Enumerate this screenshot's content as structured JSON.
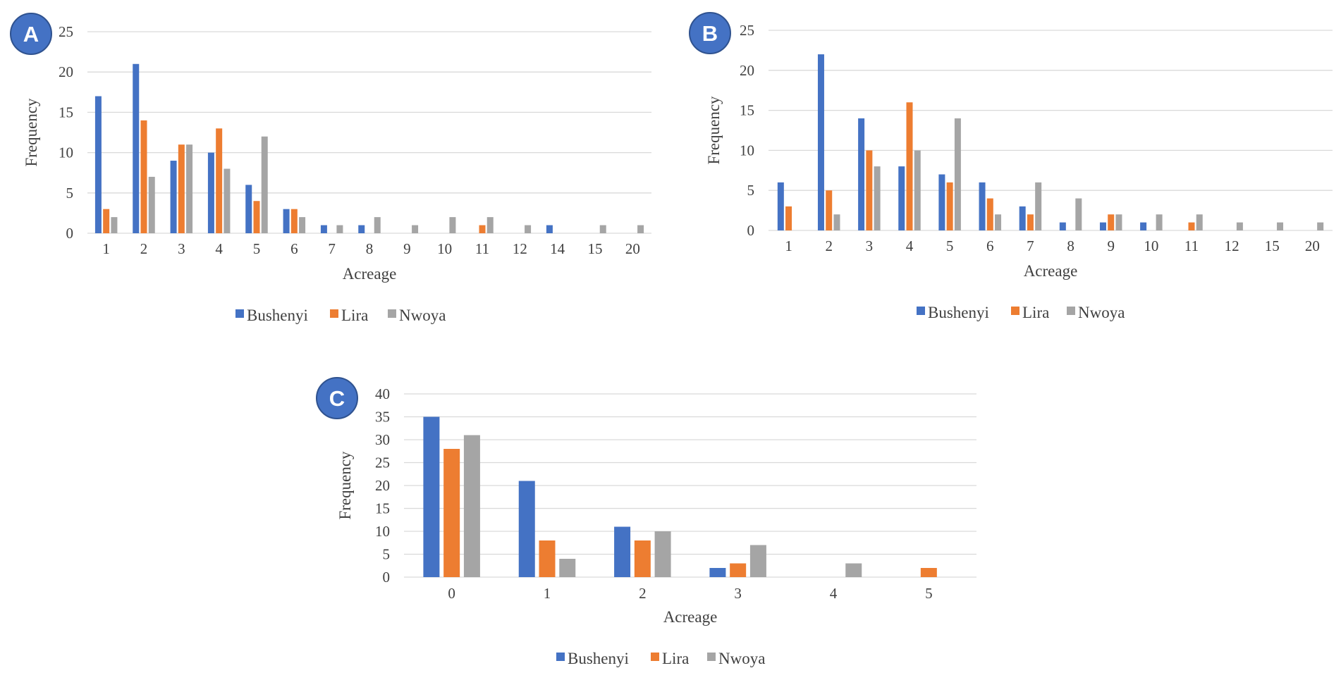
{
  "colors": {
    "Bushenyi": "#4472c4",
    "Lira": "#ed7d31",
    "Nwoya": "#a5a5a5",
    "grid": "#d9d9d9",
    "badge": "#4472c4",
    "badge_border": "#2f528f"
  },
  "chart_data": [
    {
      "panel": "A",
      "type": "bar",
      "title": "",
      "xlabel": "Acreage",
      "ylabel": "Frequency",
      "ylim": [
        0,
        25
      ],
      "yticks": [
        0,
        5,
        10,
        15,
        20,
        25
      ],
      "categories": [
        "1",
        "2",
        "3",
        "4",
        "5",
        "6",
        "7",
        "8",
        "9",
        "10",
        "11",
        "12",
        "14",
        "15",
        "20"
      ],
      "series": [
        {
          "name": "Bushenyi",
          "values": [
            17,
            21,
            9,
            10,
            6,
            3,
            1,
            1,
            0,
            0,
            0,
            0,
            1,
            0,
            0
          ]
        },
        {
          "name": "Lira",
          "values": [
            3,
            14,
            11,
            13,
            4,
            3,
            0,
            0,
            0,
            0,
            1,
            0,
            0,
            0,
            0
          ]
        },
        {
          "name": "Nwoya",
          "values": [
            2,
            7,
            11,
            8,
            12,
            2,
            1,
            2,
            1,
            2,
            2,
            1,
            0,
            1,
            1
          ]
        }
      ],
      "legend": [
        "Bushenyi",
        "Lira",
        "Nwoya"
      ]
    },
    {
      "panel": "B",
      "type": "bar",
      "title": "",
      "xlabel": "Acreage",
      "ylabel": "Frequency",
      "ylim": [
        0,
        25
      ],
      "yticks": [
        0,
        5,
        10,
        15,
        20,
        25
      ],
      "categories": [
        "1",
        "2",
        "3",
        "4",
        "5",
        "6",
        "7",
        "8",
        "9",
        "10",
        "11",
        "12",
        "15",
        "20"
      ],
      "series": [
        {
          "name": "Bushenyi",
          "values": [
            6,
            22,
            14,
            8,
            7,
            6,
            3,
            1,
            1,
            1,
            0,
            0,
            0,
            0
          ]
        },
        {
          "name": "Lira",
          "values": [
            3,
            5,
            10,
            16,
            6,
            4,
            2,
            0,
            2,
            0,
            1,
            0,
            0,
            0
          ]
        },
        {
          "name": "Nwoya",
          "values": [
            0,
            2,
            8,
            10,
            14,
            2,
            6,
            4,
            2,
            2,
            2,
            1,
            1,
            1
          ]
        }
      ],
      "legend": [
        "Bushenyi",
        "Lira",
        "Nwoya"
      ]
    },
    {
      "panel": "C",
      "type": "bar",
      "title": "",
      "xlabel": "Acreage",
      "ylabel": "Frequency",
      "ylim": [
        0,
        40
      ],
      "yticks": [
        0,
        5,
        10,
        15,
        20,
        25,
        30,
        35,
        40
      ],
      "categories": [
        "0",
        "1",
        "2",
        "3",
        "4",
        "5"
      ],
      "series": [
        {
          "name": "Bushenyi",
          "values": [
            35,
            21,
            11,
            2,
            0,
            0
          ]
        },
        {
          "name": "Lira",
          "values": [
            28,
            8,
            8,
            3,
            0,
            2
          ]
        },
        {
          "name": "Nwoya",
          "values": [
            31,
            4,
            10,
            7,
            3,
            0
          ]
        }
      ],
      "legend": [
        "Bushenyi",
        "Lira",
        "Nwoya"
      ]
    }
  ]
}
